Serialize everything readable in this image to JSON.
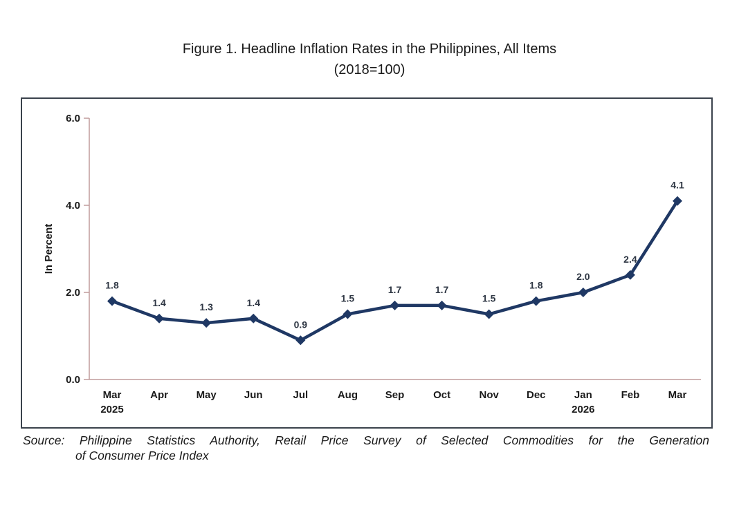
{
  "title": {
    "line1": "Figure 1. Headline Inflation Rates in the Philippines, All Items",
    "line2": "(2018=100)"
  },
  "chart_data": {
    "type": "line",
    "title": "Figure 1. Headline Inflation Rates in the Philippines, All Items (2018=100)",
    "categories": [
      "Mar\n2025",
      "Apr",
      "May",
      "Jun",
      "Jul",
      "Aug",
      "Sep",
      "Oct",
      "Nov",
      "Dec",
      "Jan\n2026",
      "Feb",
      "Mar"
    ],
    "values": [
      1.8,
      1.4,
      1.3,
      1.4,
      0.9,
      1.5,
      1.7,
      1.7,
      1.5,
      1.8,
      2.0,
      2.4,
      4.1
    ],
    "data_labels": [
      "1.8",
      "1.4",
      "1.3",
      "1.4",
      "0.9",
      "1.5",
      "1.7",
      "1.7",
      "1.5",
      "1.8",
      "2.0",
      "2.4",
      "4.1"
    ],
    "xlabel": "",
    "ylabel": "In Percent",
    "ylim": [
      0,
      6
    ],
    "yticks": [
      {
        "value": 0,
        "label": "0.0"
      },
      {
        "value": 2,
        "label": "2.0"
      },
      {
        "value": 4,
        "label": "4.0"
      },
      {
        "value": 6,
        "label": "6.0"
      }
    ],
    "grid": false,
    "legend": false,
    "marker": "diamond",
    "line_color": "#1F3864",
    "marker_color": "#1F3864",
    "axis_color": "#C09C9C",
    "data_label_color": "#2F3744",
    "tick_label_color": "#1a1a1a"
  },
  "colors": {
    "frame_border": "#3A424C",
    "text": "#1a1a1a",
    "background": "#ffffff"
  },
  "source": {
    "line1": "Source: Philippine Statistics Authority, Retail Price Survey of Selected Commodities for the Generation",
    "line2": "of Consumer Price Index"
  }
}
